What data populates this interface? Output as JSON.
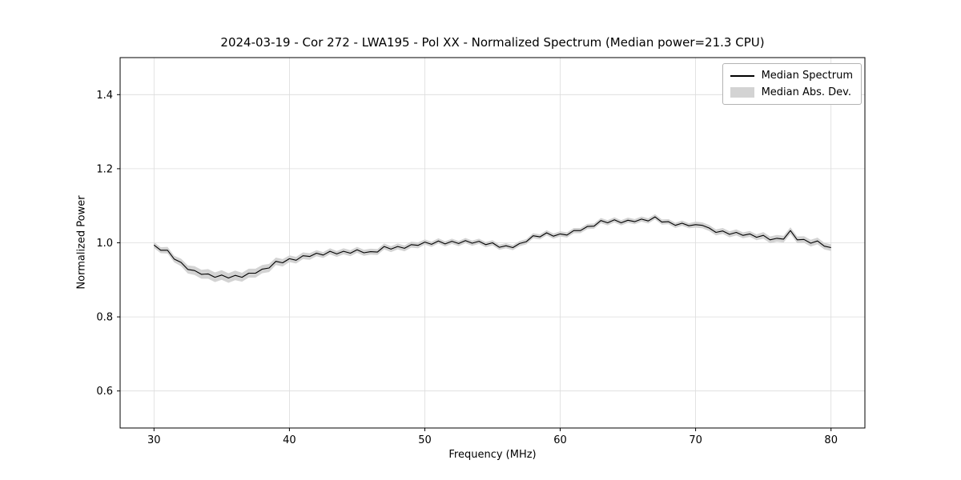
{
  "chart_data": {
    "type": "line",
    "title": "2024-03-19 - Cor 272 - LWA195 - Pol XX - Normalized Spectrum (Median power=21.3 CPU)",
    "xlabel": "Frequency (MHz)",
    "ylabel": "Normalized Power",
    "xlim": [
      27.5,
      82.5
    ],
    "ylim": [
      0.5,
      1.5
    ],
    "grid": true,
    "legend_position": "upper right",
    "legend": [
      "Median Spectrum",
      "Median Abs. Dev."
    ],
    "xticks": [
      30,
      40,
      50,
      60,
      70,
      80
    ],
    "xtick_labels": [
      "30",
      "40",
      "50",
      "60",
      "70",
      "80"
    ],
    "yticks": [
      0.6,
      0.8,
      1.0,
      1.2,
      1.4
    ],
    "ytick_labels": [
      "0.6",
      "0.8",
      "1.0",
      "1.2",
      "1.4"
    ],
    "x": [
      30,
      30.5,
      31,
      31.5,
      32,
      32.5,
      33,
      33.5,
      34,
      34.5,
      35,
      35.5,
      36,
      36.5,
      37,
      37.5,
      38,
      38.5,
      39,
      39.5,
      40,
      40.5,
      41,
      41.5,
      42,
      42.5,
      43,
      43.5,
      44,
      44.5,
      45,
      45.5,
      46,
      46.5,
      47,
      47.5,
      48,
      48.5,
      49,
      49.5,
      50,
      50.5,
      51,
      51.5,
      52,
      52.5,
      53,
      53.5,
      54,
      54.5,
      55,
      55.5,
      56,
      56.5,
      57,
      57.5,
      58,
      58.5,
      59,
      59.5,
      60,
      60.5,
      61,
      61.5,
      62,
      62.5,
      63,
      63.5,
      64,
      64.5,
      65,
      65.5,
      66,
      66.5,
      67,
      67.5,
      68,
      68.5,
      69,
      69.5,
      70,
      70.5,
      71,
      71.5,
      72,
      72.5,
      73,
      73.5,
      74,
      74.5,
      75,
      75.5,
      76,
      76.5,
      77,
      77.5,
      78,
      78.5,
      79,
      79.5,
      80
    ],
    "series": [
      {
        "name": "Median Spectrum",
        "color": "#000000",
        "values": [
          0.994,
          0.98,
          0.98,
          0.956,
          0.947,
          0.928,
          0.925,
          0.915,
          0.916,
          0.907,
          0.913,
          0.905,
          0.912,
          0.907,
          0.918,
          0.918,
          0.929,
          0.932,
          0.95,
          0.946,
          0.957,
          0.953,
          0.965,
          0.963,
          0.972,
          0.967,
          0.977,
          0.97,
          0.977,
          0.972,
          0.981,
          0.973,
          0.976,
          0.975,
          0.99,
          0.983,
          0.99,
          0.985,
          0.995,
          0.993,
          1.002,
          0.996,
          1.005,
          0.997,
          1.004,
          0.998,
          1.006,
          0.999,
          1.004,
          0.995,
          1.0,
          0.988,
          0.992,
          0.987,
          0.998,
          1.003,
          1.019,
          1.016,
          1.027,
          1.018,
          1.024,
          1.021,
          1.033,
          1.033,
          1.044,
          1.045,
          1.06,
          1.054,
          1.062,
          1.054,
          1.061,
          1.057,
          1.064,
          1.059,
          1.07,
          1.056,
          1.057,
          1.047,
          1.053,
          1.046,
          1.049,
          1.047,
          1.04,
          1.028,
          1.032,
          1.023,
          1.028,
          1.02,
          1.024,
          1.015,
          1.02,
          1.008,
          1.012,
          1.01,
          1.033,
          1.008,
          1.009,
          0.999,
          1.005,
          0.991,
          0.987
        ]
      }
    ],
    "mad": [
      0.008,
      0.008,
      0.009,
      0.009,
      0.01,
      0.011,
      0.012,
      0.012,
      0.013,
      0.013,
      0.013,
      0.013,
      0.013,
      0.012,
      0.012,
      0.012,
      0.011,
      0.011,
      0.01,
      0.01,
      0.009,
      0.009,
      0.009,
      0.009,
      0.008,
      0.008,
      0.008,
      0.008,
      0.008,
      0.008,
      0.008,
      0.008,
      0.008,
      0.008,
      0.008,
      0.008,
      0.008,
      0.008,
      0.008,
      0.008,
      0.007,
      0.007,
      0.007,
      0.007,
      0.007,
      0.007,
      0.007,
      0.007,
      0.007,
      0.007,
      0.007,
      0.007,
      0.007,
      0.007,
      0.007,
      0.007,
      0.007,
      0.007,
      0.007,
      0.007,
      0.007,
      0.007,
      0.007,
      0.007,
      0.007,
      0.007,
      0.007,
      0.007,
      0.007,
      0.007,
      0.007,
      0.007,
      0.007,
      0.007,
      0.007,
      0.007,
      0.007,
      0.007,
      0.007,
      0.007,
      0.008,
      0.008,
      0.008,
      0.008,
      0.008,
      0.008,
      0.008,
      0.008,
      0.008,
      0.008,
      0.009,
      0.009,
      0.009,
      0.009,
      0.009,
      0.009,
      0.009,
      0.009,
      0.009,
      0.009,
      0.009
    ]
  }
}
